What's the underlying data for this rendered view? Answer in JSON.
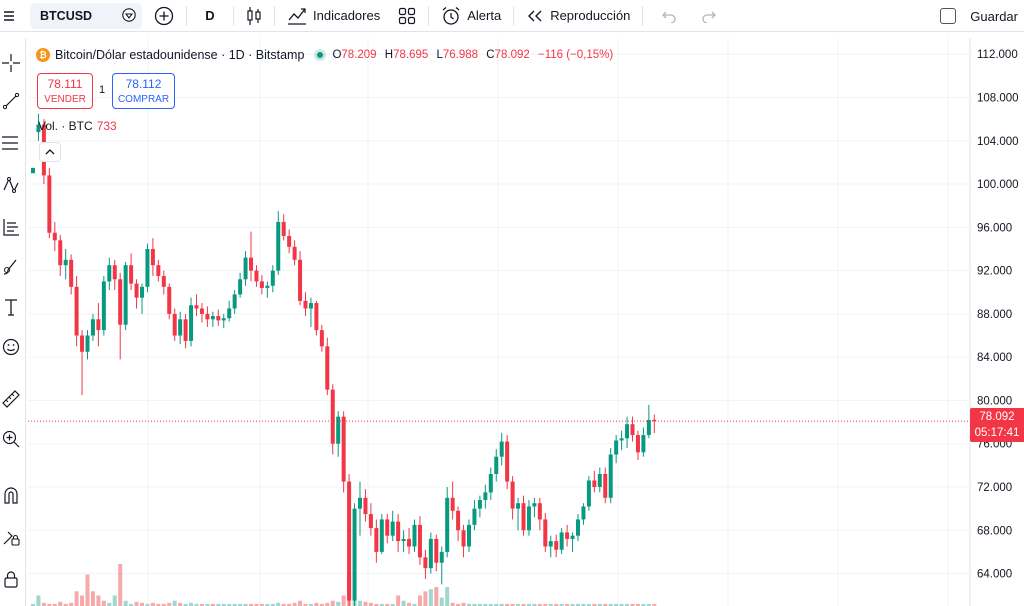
{
  "toolbar": {
    "symbol": "BTCUSD",
    "interval": "D",
    "indicators_label": "Indicadores",
    "alert_label": "Alerta",
    "replay_label": "Reproducción",
    "save_label": "Guardar"
  },
  "legend": {
    "title": "Bitcoin/Dólar estadounidense · 1D · Bitstamp",
    "btc_logo_glyph": "₿",
    "ohlc": [
      {
        "key": "O",
        "value": "78.209"
      },
      {
        "key": "H",
        "value": "78.695"
      },
      {
        "key": "L",
        "value": "76.988"
      },
      {
        "key": "C",
        "value": "78.092"
      }
    ],
    "change": "−116 (−0,15%)",
    "sell_price": "78.111",
    "sell_label": "VENDER",
    "quantity": "1",
    "buy_price": "78.112",
    "buy_label": "COMPRAR",
    "volume_label": "Vol. · BTC",
    "volume_value": "733"
  },
  "current_price": {
    "value": "78.092",
    "countdown": "05:17:41"
  },
  "colors": {
    "up": "#089981",
    "down": "#f23645",
    "vol_up": "#9fd6cd",
    "vol_down": "#f7a9a9",
    "grid": "#f0f3fa"
  },
  "chart_data": {
    "type": "candlestick",
    "y_axis_ticks": [
      "112.000",
      "108.000",
      "104.000",
      "100.000",
      "96.000",
      "92.000",
      "88.000",
      "84.000",
      "80.000",
      "76.000",
      "72.000",
      "68.000",
      "64.000"
    ],
    "ylim": [
      61000,
      113500
    ],
    "current_price": 78092,
    "candles": [
      [
        101,
        104.8,
        104.8,
        101.5
      ],
      [
        104.8,
        106.5,
        104.0,
        105.5
      ],
      [
        105.5,
        106.0,
        100.0,
        100.8
      ],
      [
        100.8,
        101.5,
        95.0,
        95.5
      ],
      [
        95.5,
        96.5,
        93.8,
        94.8
      ],
      [
        94.8,
        95.3,
        91.5,
        92.5
      ],
      [
        92.5,
        94.0,
        91.2,
        93.0
      ],
      [
        93.0,
        93.5,
        89.8,
        90.5
      ],
      [
        90.5,
        91.5,
        85.0,
        86.0
      ],
      [
        86.0,
        86.5,
        80.5,
        84.5
      ],
      [
        84.5,
        86.5,
        83.8,
        86.0
      ],
      [
        86.0,
        88.0,
        85.5,
        87.5
      ],
      [
        87.5,
        89.0,
        85.0,
        86.5
      ],
      [
        86.5,
        91.5,
        86.0,
        91.0
      ],
      [
        91.0,
        93.2,
        90.2,
        92.5
      ],
      [
        92.5,
        93.0,
        90.2,
        91.2
      ],
      [
        91.2,
        91.8,
        83.8,
        87.0
      ],
      [
        87.0,
        92.8,
        86.5,
        92.5
      ],
      [
        92.5,
        93.6,
        90.2,
        90.8
      ],
      [
        90.8,
        91.2,
        88.5,
        89.5
      ],
      [
        89.5,
        90.8,
        88.0,
        90.5
      ],
      [
        90.5,
        94.5,
        90.0,
        94.0
      ],
      [
        94.0,
        95.0,
        91.5,
        92.5
      ],
      [
        92.5,
        93.0,
        91.0,
        91.5
      ],
      [
        91.5,
        92.0,
        89.8,
        90.5
      ],
      [
        90.5,
        90.8,
        87.5,
        88.0
      ],
      [
        88.0,
        88.5,
        85.5,
        86.0
      ],
      [
        86.0,
        88.2,
        85.2,
        87.5
      ],
      [
        87.5,
        88.0,
        84.8,
        85.5
      ],
      [
        85.5,
        89.5,
        85.0,
        88.8
      ],
      [
        88.8,
        89.8,
        87.8,
        88.5
      ],
      [
        88.5,
        89.0,
        87.2,
        88.0
      ],
      [
        88.0,
        88.7,
        86.8,
        87.5
      ],
      [
        87.5,
        88.2,
        86.8,
        87.8
      ],
      [
        87.8,
        88.4,
        86.9,
        87.4
      ],
      [
        87.4,
        88.0,
        86.7,
        87.6
      ],
      [
        87.6,
        89.2,
        87.3,
        88.5
      ],
      [
        88.5,
        90.2,
        88.0,
        89.8
      ],
      [
        89.8,
        91.8,
        89.5,
        91.2
      ],
      [
        91.2,
        93.8,
        90.6,
        93.2
      ],
      [
        93.2,
        95.6,
        91.0,
        92.0
      ],
      [
        92.0,
        92.5,
        90.5,
        91.0
      ],
      [
        91.0,
        91.6,
        89.8,
        90.4
      ],
      [
        90.4,
        91.0,
        89.5,
        90.6
      ],
      [
        90.6,
        92.5,
        90.0,
        92.0
      ],
      [
        92.0,
        97.5,
        91.6,
        96.5
      ],
      [
        96.5,
        97.2,
        94.8,
        95.2
      ],
      [
        95.2,
        95.8,
        93.6,
        94.2
      ],
      [
        94.2,
        94.8,
        92.5,
        93.0
      ],
      [
        93.0,
        93.8,
        88.8,
        89.2
      ],
      [
        89.2,
        90.0,
        87.8,
        88.5
      ],
      [
        88.5,
        89.5,
        86.8,
        89.0
      ],
      [
        89.0,
        89.2,
        86.0,
        86.5
      ],
      [
        86.5,
        87.0,
        84.5,
        85.0
      ],
      [
        85.0,
        85.8,
        80.5,
        81.0
      ],
      [
        81.0,
        81.5,
        75.0,
        76.0
      ],
      [
        76.0,
        79.0,
        74.8,
        78.5
      ],
      [
        78.5,
        79.0,
        71.5,
        72.5
      ],
      [
        72.5,
        73.2,
        60.0,
        61.5
      ],
      [
        61.5,
        70.5,
        61.0,
        70.0
      ],
      [
        70.0,
        72.5,
        67.5,
        71.0
      ],
      [
        71.0,
        71.8,
        68.8,
        69.5
      ],
      [
        69.5,
        70.5,
        67.5,
        68.2
      ],
      [
        68.2,
        69.0,
        65.0,
        66.0
      ],
      [
        66.0,
        69.5,
        65.8,
        69.0
      ],
      [
        69.0,
        69.5,
        66.8,
        67.5
      ],
      [
        67.5,
        69.8,
        67.0,
        68.8
      ],
      [
        68.8,
        69.5,
        66.0,
        67.0
      ],
      [
        67.0,
        68.0,
        66.0,
        67.2
      ],
      [
        67.2,
        68.2,
        65.8,
        66.5
      ],
      [
        66.5,
        69.0,
        66.0,
        68.5
      ],
      [
        68.5,
        69.3,
        64.8,
        65.5
      ],
      [
        65.5,
        66.2,
        63.5,
        64.5
      ],
      [
        64.5,
        67.8,
        64.0,
        67.2
      ],
      [
        67.2,
        67.6,
        64.2,
        65.0
      ],
      [
        65.0,
        66.5,
        63.0,
        66.0
      ],
      [
        66.0,
        72.0,
        65.5,
        71.0
      ],
      [
        71.0,
        72.5,
        69.0,
        69.8
      ],
      [
        69.8,
        70.2,
        67.0,
        68.0
      ],
      [
        68.0,
        68.5,
        65.5,
        66.5
      ],
      [
        66.5,
        69.0,
        66.0,
        68.5
      ],
      [
        68.5,
        70.8,
        68.0,
        70.0
      ],
      [
        70.0,
        71.2,
        69.2,
        70.8
      ],
      [
        70.8,
        72.2,
        70.0,
        71.5
      ],
      [
        71.5,
        73.8,
        70.8,
        73.2
      ],
      [
        73.2,
        75.5,
        72.5,
        74.8
      ],
      [
        74.8,
        77.0,
        74.0,
        76.2
      ],
      [
        76.2,
        76.8,
        71.8,
        72.5
      ],
      [
        72.5,
        73.0,
        69.0,
        70.0
      ],
      [
        70.0,
        71.0,
        68.0,
        70.5
      ],
      [
        70.5,
        71.2,
        67.5,
        68.0
      ],
      [
        68.0,
        70.8,
        67.5,
        70.2
      ],
      [
        70.2,
        71.0,
        69.2,
        70.5
      ],
      [
        70.5,
        71.0,
        68.0,
        69.0
      ],
      [
        69.0,
        69.6,
        66.0,
        66.5
      ],
      [
        66.5,
        67.5,
        65.5,
        67.0
      ],
      [
        67.0,
        67.6,
        65.5,
        66.2
      ],
      [
        66.2,
        68.2,
        65.8,
        67.8
      ],
      [
        67.8,
        68.5,
        66.5,
        67.2
      ],
      [
        67.2,
        67.8,
        66.0,
        67.5
      ],
      [
        67.5,
        69.5,
        67.0,
        69.0
      ],
      [
        69.0,
        70.5,
        68.5,
        70.2
      ],
      [
        70.2,
        73.0,
        69.8,
        72.6
      ],
      [
        72.6,
        73.5,
        71.5,
        72.0
      ],
      [
        72.0,
        73.8,
        71.5,
        73.2
      ],
      [
        73.2,
        73.8,
        70.5,
        71.0
      ],
      [
        71.0,
        75.6,
        70.5,
        75.0
      ],
      [
        75.0,
        76.8,
        74.2,
        76.3
      ],
      [
        76.3,
        77.2,
        75.4,
        76.5
      ],
      [
        76.5,
        78.5,
        75.6,
        77.8
      ],
      [
        77.8,
        78.5,
        76.2,
        76.8
      ],
      [
        76.8,
        77.2,
        74.5,
        75.2
      ],
      [
        75.2,
        77.5,
        74.8,
        76.8
      ],
      [
        76.8,
        79.6,
        76.5,
        78.2
      ],
      [
        78.209,
        78.695,
        76.988,
        78.092
      ]
    ],
    "volumes": [
      [
        2,
        "up"
      ],
      [
        10,
        "up"
      ],
      [
        3,
        "down"
      ],
      [
        2,
        "down"
      ],
      [
        2,
        "down"
      ],
      [
        4,
        "down"
      ],
      [
        2,
        "down"
      ],
      [
        3,
        "down"
      ],
      [
        14,
        "down"
      ],
      [
        10,
        "down"
      ],
      [
        30,
        "down"
      ],
      [
        14,
        "down"
      ],
      [
        10,
        "down"
      ],
      [
        5,
        "down"
      ],
      [
        3,
        "up"
      ],
      [
        10,
        "up"
      ],
      [
        40,
        "down"
      ],
      [
        5,
        "up"
      ],
      [
        2,
        "up"
      ],
      [
        4,
        "down"
      ],
      [
        3,
        "down"
      ],
      [
        2,
        "up"
      ],
      [
        3,
        "down"
      ],
      [
        2,
        "down"
      ],
      [
        2,
        "down"
      ],
      [
        3,
        "down"
      ],
      [
        5,
        "up"
      ],
      [
        3,
        "down"
      ],
      [
        2,
        "up"
      ],
      [
        3,
        "up"
      ],
      [
        2,
        "up"
      ],
      [
        2,
        "down"
      ],
      [
        2,
        "up"
      ],
      [
        2,
        "down"
      ],
      [
        2,
        "up"
      ],
      [
        2,
        "up"
      ],
      [
        2,
        "up"
      ],
      [
        2,
        "up"
      ],
      [
        2,
        "up"
      ],
      [
        2,
        "up"
      ],
      [
        2,
        "down"
      ],
      [
        2,
        "down"
      ],
      [
        2,
        "down"
      ],
      [
        2,
        "up"
      ],
      [
        2,
        "up"
      ],
      [
        3,
        "up"
      ],
      [
        2,
        "down"
      ],
      [
        2,
        "down"
      ],
      [
        3,
        "down"
      ],
      [
        5,
        "down"
      ],
      [
        2,
        "down"
      ],
      [
        2,
        "up"
      ],
      [
        3,
        "down"
      ],
      [
        2,
        "down"
      ],
      [
        3,
        "down"
      ],
      [
        5,
        "down"
      ],
      [
        4,
        "up"
      ],
      [
        10,
        "down"
      ],
      [
        32,
        "down"
      ],
      [
        22,
        "up"
      ],
      [
        5,
        "up"
      ],
      [
        4,
        "down"
      ],
      [
        3,
        "down"
      ],
      [
        2,
        "down"
      ],
      [
        2,
        "up"
      ],
      [
        2,
        "down"
      ],
      [
        2,
        "up"
      ],
      [
        10,
        "down"
      ],
      [
        5,
        "up"
      ],
      [
        3,
        "down"
      ],
      [
        2,
        "up"
      ],
      [
        10,
        "down"
      ],
      [
        14,
        "down"
      ],
      [
        16,
        "up"
      ],
      [
        18,
        "down"
      ],
      [
        8,
        "up"
      ],
      [
        18,
        "up"
      ],
      [
        3,
        "down"
      ],
      [
        2,
        "down"
      ],
      [
        3,
        "down"
      ],
      [
        2,
        "up"
      ],
      [
        2,
        "up"
      ],
      [
        2,
        "up"
      ],
      [
        2,
        "up"
      ],
      [
        2,
        "up"
      ],
      [
        2,
        "up"
      ],
      [
        2,
        "up"
      ],
      [
        2,
        "down"
      ],
      [
        2,
        "down"
      ],
      [
        2,
        "up"
      ],
      [
        2,
        "down"
      ],
      [
        2,
        "up"
      ],
      [
        2,
        "up"
      ],
      [
        2,
        "down"
      ],
      [
        2,
        "down"
      ],
      [
        2,
        "up"
      ],
      [
        2,
        "down"
      ],
      [
        2,
        "up"
      ],
      [
        2,
        "down"
      ],
      [
        2,
        "up"
      ],
      [
        2,
        "up"
      ],
      [
        2,
        "up"
      ],
      [
        2,
        "up"
      ],
      [
        2,
        "down"
      ],
      [
        2,
        "up"
      ],
      [
        2,
        "down"
      ],
      [
        2,
        "up"
      ],
      [
        2,
        "up"
      ],
      [
        2,
        "up"
      ],
      [
        2,
        "up"
      ],
      [
        2,
        "down"
      ],
      [
        2,
        "down"
      ],
      [
        2,
        "up"
      ],
      [
        2,
        "up"
      ],
      [
        2,
        "down"
      ]
    ]
  }
}
